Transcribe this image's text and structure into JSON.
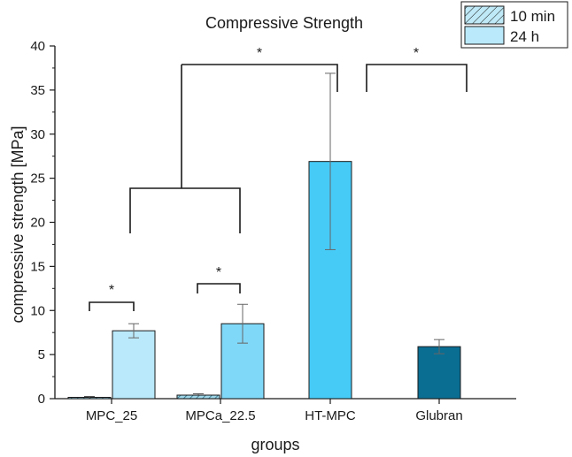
{
  "chart_data": {
    "type": "bar",
    "title": "Compressive Strength",
    "xlabel": "groups",
    "ylabel": "compressive strength [MPa]",
    "ylim": [
      0,
      40
    ],
    "yticks": [
      0,
      5,
      10,
      15,
      20,
      25,
      30,
      35,
      40
    ],
    "grid": false,
    "legend_position": "top-right",
    "categories": [
      "MPC_25",
      "MPCa_22.5",
      "HT-MPC",
      "Glubran"
    ],
    "series": [
      {
        "name": "10 min",
        "pattern": "hatched",
        "values": [
          0.15,
          0.4,
          null,
          null
        ],
        "errors": [
          0.1,
          0.15,
          null,
          null
        ],
        "color": "#7ec8e0"
      },
      {
        "name": "24 h",
        "pattern": "solid",
        "values": [
          7.7,
          8.5,
          26.9,
          5.9
        ],
        "errors": [
          0.8,
          2.2,
          10.0,
          0.8
        ],
        "colors": [
          "#b9e9fb",
          "#80d8f8",
          "#46cbf7",
          "#0a6e93"
        ]
      }
    ],
    "significance": [
      {
        "label": "*",
        "between": "MPC_25 10 min – 24 h"
      },
      {
        "label": "*",
        "between": "MPCa_22.5 10 min – 24 h"
      },
      {
        "label": "*",
        "between": "MPC_25/MPCa_22.5 – HT-MPC"
      },
      {
        "label": "*",
        "between": "HT-MPC – Glubran"
      }
    ]
  }
}
